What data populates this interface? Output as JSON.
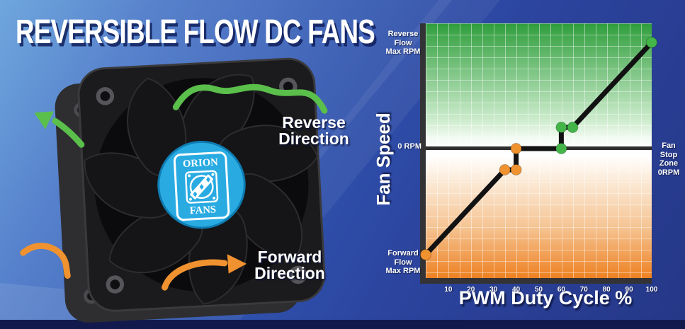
{
  "title": "REVERSIBLE FLOW DC FANS",
  "fan": {
    "reverse_direction_label": "Reverse Direction",
    "forward_direction_label": "Forward Direction",
    "hub_logo": {
      "line1": "ORION",
      "line2": "FANS"
    }
  },
  "colors": {
    "background_blue": "#2f55b0",
    "hub_blue": "#29abe2",
    "arrow_green": "#5abf4b",
    "arrow_orange": "#f0922f",
    "zone_reverse_green": "#2f9e3c",
    "zone_forward_orange": "#ee8122",
    "curve_black": "#121212",
    "dot_orange": "#f0922f",
    "dot_green": "#44b649",
    "axis_gray": "#333336"
  },
  "chart_data": {
    "type": "line",
    "title": "",
    "xlabel": "PWM Duty Cycle %",
    "ylabel": "Fan Speed",
    "xlim": [
      0,
      100
    ],
    "ylim": [
      -1,
      1
    ],
    "y_unit_note": "y normalized: +1 = Reverse Flow Max RPM, 0 = 0 RPM (fan stopped), -1 = Forward Flow Max RPM",
    "grid": "on",
    "x_ticks": [
      10,
      20,
      30,
      40,
      50,
      60,
      70,
      80,
      90,
      100
    ],
    "y_axis_labels": {
      "reverse_max_lines": [
        "Reverse",
        "Flow",
        "Max RPM"
      ],
      "zero": "0 RPM",
      "forward_max_lines": [
        "Forward",
        "Flow",
        "Max RPM"
      ]
    },
    "right_annotation_lines": [
      "Fan Stop",
      "Zone",
      "0RPM"
    ],
    "fan_stop_zone_duty_range": [
      40,
      60
    ],
    "series": [
      {
        "name": "fan speed vs PWM duty cycle",
        "line_color": "#121212",
        "points": [
          {
            "x": 0,
            "y": -1.0,
            "dot": "#f0922f"
          },
          {
            "x": 35,
            "y": -0.2,
            "dot": "#f0922f"
          },
          {
            "x": 40,
            "y": -0.2,
            "dot": "#f0922f"
          },
          {
            "x": 40,
            "y": 0.0,
            "dot": "#f0922f"
          },
          {
            "x": 60,
            "y": 0.0,
            "dot": "#44b649"
          },
          {
            "x": 60,
            "y": 0.2,
            "dot": "#44b649"
          },
          {
            "x": 65,
            "y": 0.2,
            "dot": "#44b649"
          },
          {
            "x": 100,
            "y": 1.0,
            "dot": "#44b649"
          }
        ]
      }
    ]
  }
}
